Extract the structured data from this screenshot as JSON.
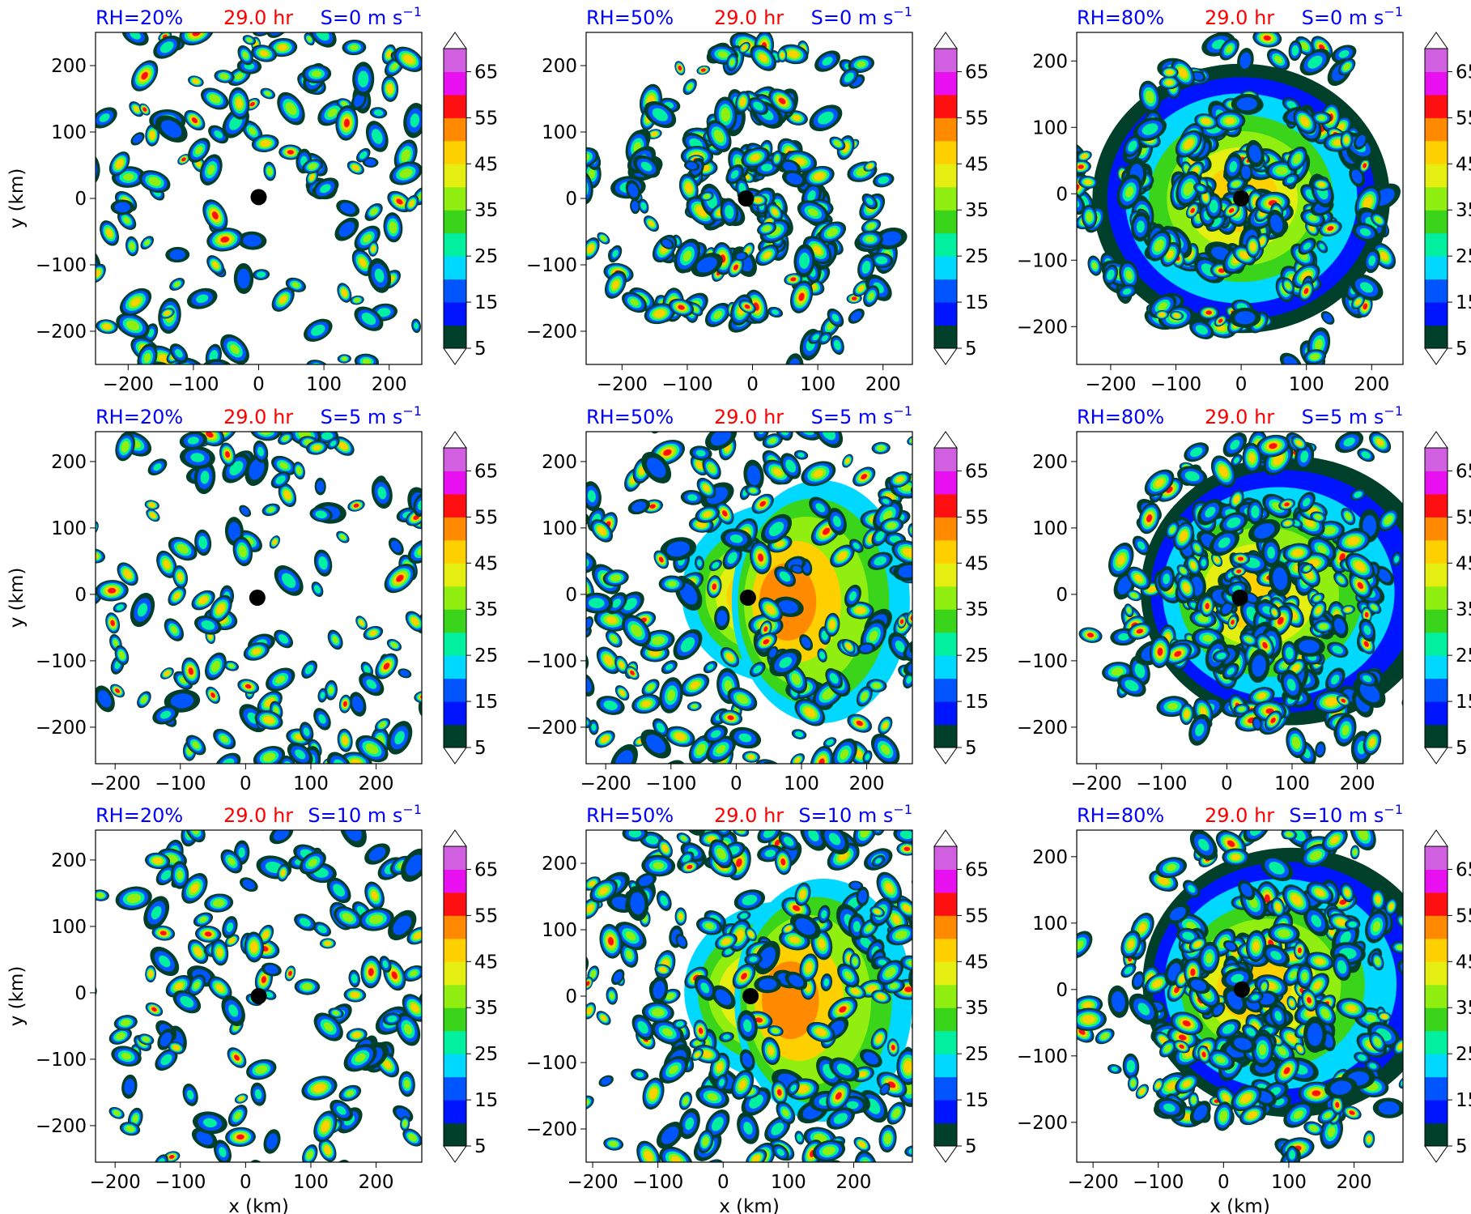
{
  "figure": {
    "time_label": "29.0 hr",
    "x_axis_label": "x (km)",
    "y_axis_label": "y (km)",
    "title_colors": {
      "rh": "#0000ff",
      "time": "#ff0000",
      "shear": "#0000ff"
    }
  },
  "chart_data": [
    {
      "type": "heatmap",
      "rh_label": "RH=20%",
      "time_label": "29.0 hr",
      "shear_label": "S=0 m s",
      "shear_sup": "−1",
      "xlim": [
        -250,
        250
      ],
      "ylim": [
        -250,
        250
      ],
      "center": [
        0,
        2
      ],
      "xticks": [
        -200,
        -100,
        0,
        100,
        200
      ],
      "yticks": [
        -200,
        -100,
        0,
        100,
        200
      ],
      "ylabel": "y (km)",
      "xlabel": "",
      "pattern": "scattered",
      "cover": 0.55
    },
    {
      "type": "heatmap",
      "rh_label": "RH=50%",
      "time_label": "29.0 hr",
      "shear_label": "S=0 m s",
      "shear_sup": "−1",
      "xlim": [
        -255,
        245
      ],
      "ylim": [
        -250,
        250
      ],
      "center": [
        -10,
        0
      ],
      "xticks": [
        -200,
        -100,
        0,
        100,
        200
      ],
      "yticks": [
        -200,
        -100,
        0,
        100,
        200
      ],
      "ylabel": "",
      "xlabel": "",
      "pattern": "spiral",
      "cover": 0.8
    },
    {
      "type": "heatmap",
      "rh_label": "RH=80%",
      "time_label": "29.0 hr",
      "shear_label": "S=0 m s",
      "shear_sup": "−1",
      "xlim": [
        -252,
        248
      ],
      "ylim": [
        -257,
        243
      ],
      "center": [
        0,
        -7
      ],
      "xticks": [
        -200,
        -100,
        0,
        100,
        200
      ],
      "yticks": [
        -200,
        -100,
        0,
        100,
        200
      ],
      "ylabel": "",
      "xlabel": "",
      "pattern": "organized",
      "cover": 1.0
    },
    {
      "type": "heatmap",
      "rh_label": "RH=20%",
      "time_label": "29.0 hr",
      "shear_label": "S=5 m s",
      "shear_sup": "−1",
      "xlim": [
        -230,
        270
      ],
      "ylim": [
        -255,
        245
      ],
      "center": [
        18,
        -5
      ],
      "xticks": [
        -200,
        -100,
        0,
        100,
        200
      ],
      "yticks": [
        -200,
        -100,
        0,
        100,
        200
      ],
      "ylabel": "y (km)",
      "xlabel": "",
      "pattern": "scattered-shifted",
      "cover": 0.6
    },
    {
      "type": "heatmap",
      "rh_label": "RH=50%",
      "time_label": "29.0 hr",
      "shear_label": "S=5 m s",
      "shear_sup": "−1",
      "xlim": [
        -230,
        270
      ],
      "ylim": [
        -255,
        245
      ],
      "center": [
        18,
        -5
      ],
      "xticks": [
        -200,
        -100,
        0,
        100,
        200
      ],
      "yticks": [
        -200,
        -100,
        0,
        100,
        200
      ],
      "ylabel": "",
      "xlabel": "",
      "pattern": "comma",
      "cover": 0.85
    },
    {
      "type": "heatmap",
      "rh_label": "RH=80%",
      "time_label": "29.0 hr",
      "shear_label": "S=5 m s",
      "shear_sup": "−1",
      "xlim": [
        -230,
        270
      ],
      "ylim": [
        -255,
        245
      ],
      "center": [
        20,
        -5
      ],
      "xticks": [
        -200,
        -100,
        0,
        100,
        200
      ],
      "yticks": [
        -200,
        -100,
        0,
        100,
        200
      ],
      "ylabel": "",
      "xlabel": "",
      "pattern": "organized-shifted",
      "cover": 1.0
    },
    {
      "type": "heatmap",
      "rh_label": "RH=20%",
      "time_label": "29.0 hr",
      "shear_label": "S=10 m s",
      "shear_sup": "−1",
      "xlim": [
        -230,
        270
      ],
      "ylim": [
        -255,
        245
      ],
      "center": [
        20,
        -5
      ],
      "xticks": [
        -200,
        -100,
        0,
        100,
        200
      ],
      "yticks": [
        -200,
        -100,
        0,
        100,
        200
      ],
      "ylabel": "y (km)",
      "xlabel": "x (km)",
      "pattern": "scattered-east",
      "cover": 0.6
    },
    {
      "type": "heatmap",
      "rh_label": "RH=50%",
      "time_label": "29.0 hr",
      "shear_label": "S=10 m s",
      "shear_sup": "−1",
      "xlim": [
        -210,
        290
      ],
      "ylim": [
        -250,
        250
      ],
      "center": [
        42,
        0
      ],
      "xticks": [
        -200,
        -100,
        0,
        100,
        200
      ],
      "yticks": [
        -200,
        -100,
        0,
        100,
        200
      ],
      "ylabel": "",
      "xlabel": "x (km)",
      "pattern": "comma-strong",
      "cover": 0.9
    },
    {
      "type": "heatmap",
      "rh_label": "RH=80%",
      "time_label": "29.0 hr",
      "shear_label": "S=10 m s",
      "shear_sup": "−1",
      "xlim": [
        -225,
        275
      ],
      "ylim": [
        -260,
        240
      ],
      "center": [
        28,
        0
      ],
      "xticks": [
        -200,
        -100,
        0,
        100,
        200
      ],
      "yticks": [
        -200,
        -100,
        0,
        100,
        200
      ],
      "ylabel": "",
      "xlabel": "x (km)",
      "pattern": "comma-organized",
      "cover": 1.0
    }
  ],
  "colorbar": {
    "boundaries": [
      5,
      10,
      15,
      20,
      25,
      30,
      35,
      40,
      45,
      50,
      55,
      60,
      65,
      70
    ],
    "tick_labels": [
      "5",
      "15",
      "25",
      "35",
      "45",
      "55",
      "65"
    ],
    "extend": "both",
    "colors": [
      "#003f2a",
      "#0015ff",
      "#0055ff",
      "#00d8ff",
      "#00f0a0",
      "#3ad41a",
      "#90ee10",
      "#e4ee10",
      "#ffd000",
      "#ff8a00",
      "#ff1010",
      "#e810f0",
      "#d060e0",
      "#f4c4f4"
    ]
  }
}
